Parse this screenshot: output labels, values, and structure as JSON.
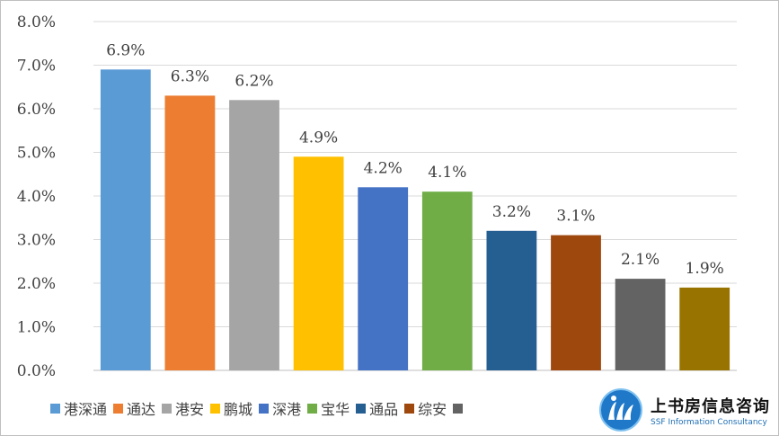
{
  "chart_data": {
    "type": "bar",
    "categories": [
      "港深通",
      "通达",
      "港安",
      "鹏城",
      "深港",
      "宝华",
      "通品",
      "综安",
      "",
      ""
    ],
    "values": [
      6.9,
      6.3,
      6.2,
      4.9,
      4.2,
      4.1,
      3.2,
      3.1,
      2.1,
      1.9
    ],
    "value_labels": [
      "6.9%",
      "6.3%",
      "6.2%",
      "4.9%",
      "4.2%",
      "4.1%",
      "3.2%",
      "3.1%",
      "2.1%",
      "1.9%"
    ],
    "colors": [
      "#5b9bd5",
      "#ed7d31",
      "#a5a5a5",
      "#ffc000",
      "#4472c4",
      "#70ad47",
      "#255e91",
      "#9e480e",
      "#636363",
      "#997300"
    ],
    "ylim": [
      0,
      8
    ],
    "y_ticks": [
      "0.0%",
      "1.0%",
      "2.0%",
      "3.0%",
      "4.0%",
      "5.0%",
      "6.0%",
      "7.0%",
      "8.0%"
    ],
    "grid": true,
    "legend_position": "bottom",
    "title": "",
    "xlabel": "",
    "ylabel": ""
  },
  "legend": [
    {
      "label": "港深通",
      "color": "#5b9bd5"
    },
    {
      "label": "通达",
      "color": "#ed7d31"
    },
    {
      "label": "港安",
      "color": "#a5a5a5"
    },
    {
      "label": "鹏城",
      "color": "#ffc000"
    },
    {
      "label": "深港",
      "color": "#4472c4"
    },
    {
      "label": "宝华",
      "color": "#70ad47"
    },
    {
      "label": "通品",
      "color": "#255e91"
    },
    {
      "label": "综安",
      "color": "#9e480e"
    },
    {
      "label": "",
      "color": "#636363"
    }
  ],
  "logo": {
    "name_cn": "上书房信息咨询",
    "name_en": "SSF Information Consultancy",
    "icon": "ssf-logo-icon"
  }
}
